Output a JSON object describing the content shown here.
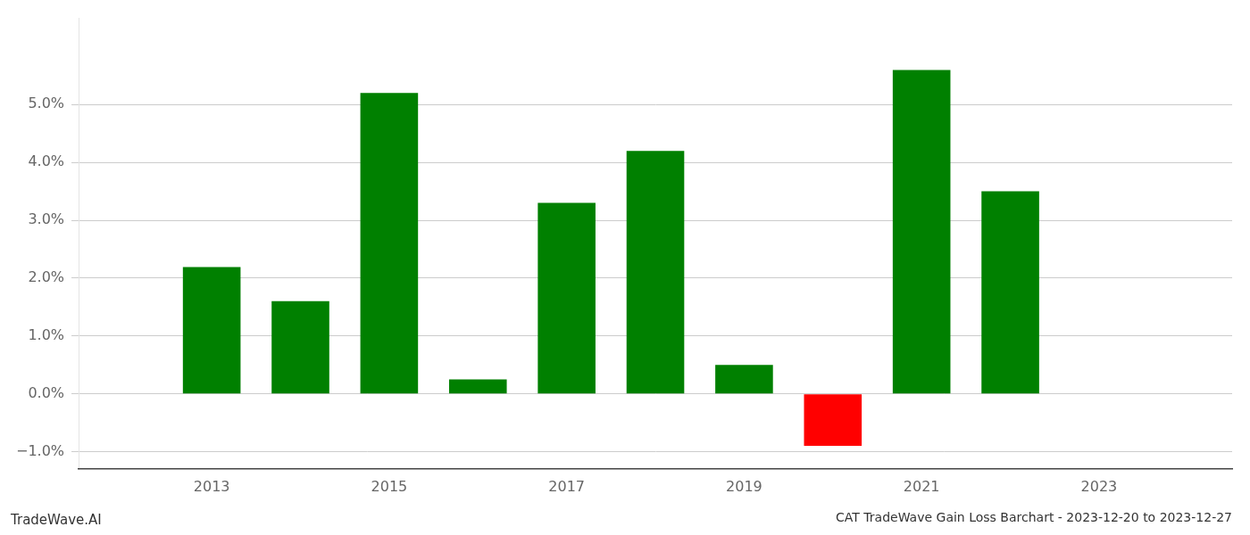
{
  "chart_data": {
    "type": "bar",
    "title": "CAT TradeWave Gain Loss Barchart - 2023-12-20 to 2023-12-27",
    "annotations": [
      "TradeWave.AI"
    ],
    "x": [
      2013,
      2014,
      2015,
      2016,
      2017,
      2018,
      2019,
      2020,
      2021,
      2022
    ],
    "values": [
      0.0219,
      0.016,
      0.052,
      0.0025,
      0.033,
      0.042,
      0.005,
      -0.009,
      0.056,
      0.035
    ],
    "colors": [
      "#008000",
      "#008000",
      "#008000",
      "#008000",
      "#008000",
      "#008000",
      "#008000",
      "#ff0000",
      "#008000",
      "#008000"
    ],
    "xlim": [
      2011.5,
      2024.5
    ],
    "xticks": [
      2013,
      2015,
      2017,
      2019,
      2021,
      2023
    ],
    "ylim": [
      -0.013,
      0.065
    ],
    "yticks": [
      {
        "value": -0.01,
        "label": "−1.0%"
      },
      {
        "value": 0.0,
        "label": "0.0%"
      },
      {
        "value": 0.01,
        "label": "1.0%"
      },
      {
        "value": 0.02,
        "label": "2.0%"
      },
      {
        "value": 0.03,
        "label": "3.0%"
      },
      {
        "value": 0.04,
        "label": "4.0%"
      },
      {
        "value": 0.05,
        "label": "5.0%"
      }
    ],
    "grid": "y"
  }
}
